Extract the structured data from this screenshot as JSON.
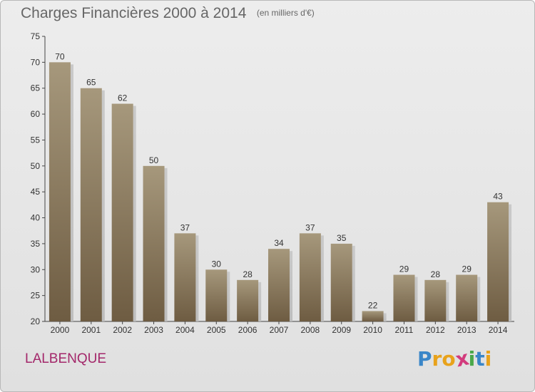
{
  "title": "Charges Financières 2000 à 2014",
  "unit_label": "(en milliers d'€)",
  "commune": "LALBENQUE",
  "logo": {
    "letters": [
      "P",
      "r",
      "o",
      "x",
      "i",
      "t",
      "i"
    ],
    "colors": [
      "#3a86c8",
      "#e8a21b",
      "#e8a21b",
      "#d23b7d",
      "#4aa84a",
      "#3a86c8",
      "#e8a21b"
    ]
  },
  "colors": {
    "bar_top": "#a6987c",
    "bar_bottom": "#6e5c42",
    "axis_text": "#333333",
    "grid": "#cfcfcf"
  },
  "chart_data": {
    "type": "bar",
    "title": "Charges Financières 2000 à 2014",
    "subtitle": "(en milliers d'€)",
    "categories": [
      "2000",
      "2001",
      "2002",
      "2003",
      "2004",
      "2005",
      "2006",
      "2007",
      "2008",
      "2009",
      "2010",
      "2011",
      "2012",
      "2013",
      "2014"
    ],
    "values": [
      70,
      65,
      62,
      50,
      37,
      30,
      28,
      34,
      37,
      35,
      22,
      29,
      28,
      29,
      43
    ],
    "ylim": [
      20,
      75
    ],
    "yticks": [
      20,
      25,
      30,
      35,
      40,
      45,
      50,
      55,
      60,
      65,
      70,
      75
    ],
    "grid": false,
    "data_labels": true
  }
}
